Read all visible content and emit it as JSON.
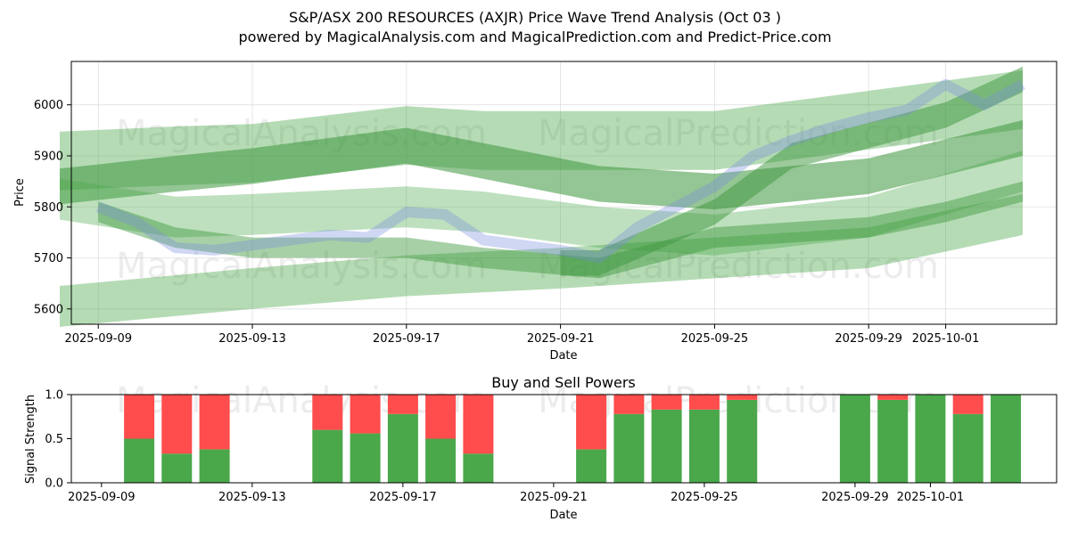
{
  "chart_data": [
    {
      "type": "area",
      "title": "S&P/ASX 200 RESOURCES (AXJR) Price Wave Trend Analysis (Oct 03 )",
      "subtitle": "powered by MagicalAnalysis.com and MagicalPrediction.com and Predict-Price.com",
      "xlabel": "Date",
      "ylabel": "Price",
      "xlim": [
        "2025-09-08",
        "2025-10-04"
      ],
      "ylim": [
        5570,
        6085
      ],
      "xticks": [
        "2025-09-09",
        "2025-09-13",
        "2025-09-17",
        "2025-09-21",
        "2025-09-25",
        "2025-09-29",
        "2025-10-01"
      ],
      "yticks": [
        5600,
        5700,
        5800,
        5900,
        6000
      ],
      "grid": true,
      "watermarks": [
        "MagicalAnalysis.com",
        "MagicalPrediction.com",
        "MagicalAnalysis.com",
        "MagicalPrediction.com"
      ],
      "price_series": {
        "x": [
          "2025-09-09",
          "2025-09-10",
          "2025-09-11",
          "2025-09-12",
          "2025-09-13",
          "2025-09-14",
          "2025-09-15",
          "2025-09-16",
          "2025-09-17",
          "2025-09-18",
          "2025-09-19",
          "2025-09-20",
          "2025-09-21",
          "2025-09-22",
          "2025-09-23",
          "2025-09-24",
          "2025-09-25",
          "2025-09-26",
          "2025-09-27",
          "2025-09-28",
          "2025-09-29",
          "2025-09-30",
          "2025-10-01",
          "2025-10-02",
          "2025-10-03"
        ],
        "values": [
          5800,
          5770,
          5720,
          5715,
          5725,
          5735,
          5745,
          5740,
          5790,
          5785,
          5735,
          5725,
          5715,
          5700,
          5760,
          5800,
          5840,
          5900,
          5930,
          5955,
          5975,
          5990,
          6040,
          6000,
          6040
        ]
      },
      "bands": [
        {
          "name": "upper-wave",
          "x": [
            "2025-09-08",
            "2025-09-11",
            "2025-09-13",
            "2025-09-17",
            "2025-09-19",
            "2025-09-25",
            "2025-10-03"
          ],
          "values": [
            5890,
            5900,
            5905,
            5940,
            5930,
            5930,
            6010
          ],
          "width": 115
        },
        {
          "name": "trend-wave",
          "x": [
            "2025-09-08",
            "2025-09-11",
            "2025-09-13",
            "2025-09-17",
            "2025-09-19",
            "2025-09-22",
            "2025-09-25",
            "2025-09-29",
            "2025-10-03"
          ],
          "values": [
            5840,
            5865,
            5880,
            5920,
            5890,
            5845,
            5830,
            5860,
            5935
          ],
          "width": 70
        },
        {
          "name": "fall-wave",
          "x": [
            "2025-09-08",
            "2025-09-11",
            "2025-09-13",
            "2025-09-17",
            "2025-09-19",
            "2025-09-22",
            "2025-09-25",
            "2025-09-29",
            "2025-10-03"
          ],
          "values": [
            5815,
            5780,
            5785,
            5800,
            5790,
            5760,
            5745,
            5780,
            5870
          ],
          "width": 80
        },
        {
          "name": "low-wave",
          "x": [
            "2025-09-08",
            "2025-09-13",
            "2025-09-17",
            "2025-09-21",
            "2025-09-25",
            "2025-09-29",
            "2025-10-03"
          ],
          "values": [
            5605,
            5640,
            5665,
            5680,
            5700,
            5720,
            5785
          ],
          "width": 80
        },
        {
          "name": "mid-wave",
          "x": [
            "2025-09-09",
            "2025-09-11",
            "2025-09-13",
            "2025-09-17",
            "2025-09-19",
            "2025-09-22",
            "2025-09-25",
            "2025-09-29",
            "2025-10-01",
            "2025-10-03"
          ],
          "values": [
            5790,
            5740,
            5720,
            5720,
            5700,
            5680,
            5740,
            5760,
            5790,
            5830
          ],
          "width": 40
        },
        {
          "name": "rise-wave",
          "x": [
            "2025-09-21",
            "2025-09-22",
            "2025-09-25",
            "2025-09-27",
            "2025-09-29",
            "2025-10-01",
            "2025-10-03"
          ],
          "values": [
            5690,
            5690,
            5790,
            5900,
            5940,
            5980,
            6050
          ],
          "width": 50
        }
      ]
    },
    {
      "type": "bar",
      "title": "Buy and Sell Powers",
      "xlabel": "Date",
      "ylabel": "Signal Strength",
      "ylim": [
        0,
        1.0
      ],
      "yticks": [
        "0.0",
        "0.5",
        "1.0"
      ],
      "xticks": [
        "2025-09-09",
        "2025-09-13",
        "2025-09-17",
        "2025-09-21",
        "2025-09-25",
        "2025-09-29",
        "2025-10-01"
      ],
      "categories": [
        "2025-09-10",
        "2025-09-11",
        "2025-09-12",
        "2025-09-15",
        "2025-09-16",
        "2025-09-17",
        "2025-09-18",
        "2025-09-19",
        "2025-09-22",
        "2025-09-23",
        "2025-09-24",
        "2025-09-25",
        "2025-09-26",
        "2025-09-29",
        "2025-09-30",
        "2025-10-01",
        "2025-10-02",
        "2025-10-03"
      ],
      "series": [
        {
          "name": "Buy",
          "color": "#4aa84a",
          "values": [
            0.5,
            0.33,
            0.38,
            0.6,
            0.56,
            0.78,
            0.5,
            0.33,
            0.38,
            0.78,
            0.83,
            0.83,
            0.94,
            1.0,
            0.94,
            1.0,
            0.78,
            1.0
          ]
        },
        {
          "name": "Sell",
          "color": "#ff4c4c",
          "values": [
            0.5,
            0.67,
            0.62,
            0.4,
            0.44,
            0.22,
            0.5,
            0.67,
            0.62,
            0.22,
            0.17,
            0.17,
            0.06,
            0.0,
            0.06,
            0.0,
            0.22,
            0.0
          ]
        }
      ],
      "watermarks": [
        "MagicalAnalysis.com",
        "MagicalPrediction.com"
      ]
    }
  ]
}
